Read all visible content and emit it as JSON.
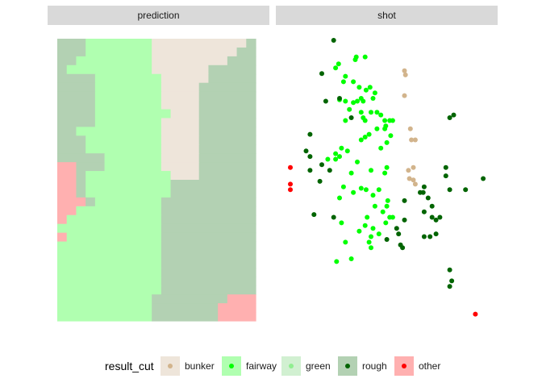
{
  "chart_data": [
    {
      "type": "heatmap",
      "panel": "prediction",
      "grid": {
        "cols": 21,
        "rows": 32
      },
      "colors": {
        "bunker": "#eee5da",
        "fairway": "#b0ffb0",
        "green": "#d1f0d1",
        "rough": "#b3d1b3",
        "other": "#ffb0b0"
      },
      "region_rows": [
        [
          3,
          13,
          3
        ],
        [
          3,
          13,
          3
        ],
        [
          3,
          13,
          3
        ],
        [
          3,
          13,
          3
        ],
        [
          3,
          13,
          3
        ],
        [
          3,
          13,
          3
        ],
        [
          3,
          13,
          3
        ],
        [
          3,
          13,
          3
        ],
        [
          3,
          13,
          3
        ],
        [
          3,
          13,
          3
        ],
        [
          3,
          13,
          3
        ],
        [
          3,
          13,
          3
        ],
        [
          3,
          13,
          3
        ],
        [
          3,
          13,
          3
        ],
        [
          3,
          13,
          3
        ],
        [
          3,
          13,
          3
        ],
        [
          3,
          13,
          3
        ],
        [
          3,
          13,
          3
        ],
        [
          3,
          13,
          3
        ],
        [
          3,
          13,
          3
        ],
        [
          3,
          13,
          3
        ],
        [
          3,
          13,
          3
        ],
        [
          3,
          13,
          3
        ],
        [
          3,
          13,
          3
        ],
        [
          3,
          13,
          3
        ],
        [
          3,
          13,
          3
        ],
        [
          3,
          13,
          3
        ],
        [
          3,
          13,
          3
        ],
        [
          3,
          13,
          3
        ],
        [
          3,
          13,
          3
        ],
        [
          3,
          13,
          3
        ],
        [
          3,
          13,
          3
        ]
      ],
      "runs": [
        [
          [
            "rough",
            3
          ],
          [
            "fairway",
            7
          ],
          [
            "bunker",
            10
          ],
          [
            "rough",
            1
          ]
        ],
        [
          [
            "rough",
            3
          ],
          [
            "fairway",
            7
          ],
          [
            "bunker",
            9
          ],
          [
            "rough",
            2
          ]
        ],
        [
          [
            "rough",
            2
          ],
          [
            "fairway",
            8
          ],
          [
            "bunker",
            8
          ],
          [
            "rough",
            3
          ]
        ],
        [
          [
            "rough",
            1
          ],
          [
            "fairway",
            9
          ],
          [
            "bunker",
            6
          ],
          [
            "rough",
            5
          ]
        ],
        [
          [
            "rough",
            4
          ],
          [
            "fairway",
            7
          ],
          [
            "bunker",
            5
          ],
          [
            "rough",
            5
          ]
        ],
        [
          [
            "rough",
            4
          ],
          [
            "fairway",
            7
          ],
          [
            "bunker",
            4
          ],
          [
            "rough",
            6
          ]
        ],
        [
          [
            "rough",
            4
          ],
          [
            "fairway",
            7
          ],
          [
            "bunker",
            4
          ],
          [
            "rough",
            6
          ]
        ],
        [
          [
            "rough",
            4
          ],
          [
            "fairway",
            7
          ],
          [
            "bunker",
            4
          ],
          [
            "rough",
            6
          ]
        ],
        [
          [
            "rough",
            4
          ],
          [
            "fairway",
            8
          ],
          [
            "bunker",
            3
          ],
          [
            "rough",
            6
          ]
        ],
        [
          [
            "rough",
            4
          ],
          [
            "fairway",
            7
          ],
          [
            "bunker",
            4
          ],
          [
            "rough",
            6
          ]
        ],
        [
          [
            "rough",
            2
          ],
          [
            "fairway",
            9
          ],
          [
            "bunker",
            4
          ],
          [
            "rough",
            6
          ]
        ],
        [
          [
            "rough",
            3
          ],
          [
            "fairway",
            8
          ],
          [
            "bunker",
            4
          ],
          [
            "rough",
            6
          ]
        ],
        [
          [
            "rough",
            3
          ],
          [
            "fairway",
            8
          ],
          [
            "bunker",
            4
          ],
          [
            "rough",
            6
          ]
        ],
        [
          [
            "rough",
            5
          ],
          [
            "fairway",
            6
          ],
          [
            "bunker",
            4
          ],
          [
            "rough",
            6
          ]
        ],
        [
          [
            "other",
            2
          ],
          [
            "rough",
            3
          ],
          [
            "fairway",
            6
          ],
          [
            "bunker",
            4
          ],
          [
            "rough",
            6
          ]
        ],
        [
          [
            "other",
            2
          ],
          [
            "rough",
            1
          ],
          [
            "fairway",
            9
          ],
          [
            "bunker",
            3
          ],
          [
            "rough",
            6
          ]
        ],
        [
          [
            "other",
            2
          ],
          [
            "rough",
            1
          ],
          [
            "fairway",
            9
          ],
          [
            "rough",
            9
          ]
        ],
        [
          [
            "other",
            2
          ],
          [
            "rough",
            1
          ],
          [
            "fairway",
            9
          ],
          [
            "rough",
            9
          ]
        ],
        [
          [
            "other",
            3
          ],
          [
            "rough",
            1
          ],
          [
            "fairway",
            7
          ],
          [
            "rough",
            10
          ]
        ],
        [
          [
            "other",
            2
          ],
          [
            "fairway",
            9
          ],
          [
            "rough",
            10
          ]
        ],
        [
          [
            "other",
            1
          ],
          [
            "fairway",
            10
          ],
          [
            "rough",
            10
          ]
        ],
        [
          [
            "fairway",
            11
          ],
          [
            "rough",
            10
          ]
        ],
        [
          [
            "other",
            1
          ],
          [
            "fairway",
            10
          ],
          [
            "rough",
            10
          ]
        ],
        [
          [
            "fairway",
            11
          ],
          [
            "rough",
            10
          ]
        ],
        [
          [
            "fairway",
            11
          ],
          [
            "rough",
            10
          ]
        ],
        [
          [
            "fairway",
            11
          ],
          [
            "rough",
            10
          ]
        ],
        [
          [
            "fairway",
            11
          ],
          [
            "rough",
            10
          ]
        ],
        [
          [
            "fairway",
            11
          ],
          [
            "rough",
            10
          ]
        ],
        [
          [
            "fairway",
            11
          ],
          [
            "rough",
            10
          ]
        ],
        [
          [
            "fairway",
            10
          ],
          [
            "rough",
            8
          ],
          [
            "other",
            3
          ]
        ],
        [
          [
            "fairway",
            10
          ],
          [
            "rough",
            7
          ],
          [
            "other",
            4
          ]
        ],
        [
          [
            "fairway",
            10
          ],
          [
            "rough",
            7
          ],
          [
            "other",
            4
          ]
        ]
      ]
    },
    {
      "type": "scatter",
      "panel": "shot",
      "xlim": [
        0,
        100
      ],
      "ylim": [
        0,
        100
      ],
      "colors": {
        "bunker": "#d2b48c",
        "fairway": "#00ff00",
        "green": "#90ee90",
        "rough": "#006400",
        "other": "#ff0000"
      },
      "series": [
        {
          "name": "bunker",
          "points": [
            [
              58,
              89
            ],
            [
              58.5,
              87.5
            ],
            [
              58,
              80
            ],
            [
              61,
              68
            ],
            [
              61.5,
              64
            ],
            [
              63.5,
              64
            ],
            [
              60,
              53
            ],
            [
              62.5,
              54
            ],
            [
              60.5,
              50
            ],
            [
              62.5,
              49.5
            ],
            [
              63.5,
              48
            ]
          ]
        },
        {
          "name": "fairway",
          "points": [
            [
              23,
              90
            ],
            [
              24.5,
              91.5
            ],
            [
              28,
              87
            ],
            [
              33,
              93
            ],
            [
              33.5,
              94
            ],
            [
              38,
              94
            ],
            [
              27,
              85
            ],
            [
              32,
              85
            ],
            [
              35,
              83
            ],
            [
              38.5,
              82
            ],
            [
              40.5,
              83
            ],
            [
              43,
              81
            ],
            [
              25,
              78.5
            ],
            [
              28,
              78
            ],
            [
              32,
              77.5
            ],
            [
              34,
              78
            ],
            [
              36,
              79
            ],
            [
              37,
              78
            ],
            [
              42,
              79
            ],
            [
              30,
              75
            ],
            [
              36,
              74
            ],
            [
              37,
              72
            ],
            [
              38,
              71
            ],
            [
              41,
              74
            ],
            [
              44,
              74
            ],
            [
              46,
              73
            ],
            [
              48,
              71
            ],
            [
              48.5,
              69
            ],
            [
              50.5,
              71
            ],
            [
              52,
              71
            ],
            [
              28,
              71
            ],
            [
              44,
              68
            ],
            [
              48,
              68
            ],
            [
              40,
              66
            ],
            [
              38,
              65
            ],
            [
              36,
              64
            ],
            [
              51,
              65.5
            ],
            [
              49,
              63
            ],
            [
              46,
              61
            ],
            [
              23,
              59
            ],
            [
              26,
              61
            ],
            [
              29,
              60
            ],
            [
              23,
              57
            ],
            [
              25,
              58
            ],
            [
              19,
              57
            ],
            [
              34,
              56
            ],
            [
              31,
              52
            ],
            [
              41,
              53
            ],
            [
              49,
              54
            ],
            [
              48,
              52
            ],
            [
              36,
              46.5
            ],
            [
              38.5,
              46
            ],
            [
              42,
              44
            ],
            [
              45,
              46
            ],
            [
              25,
              43
            ],
            [
              27,
              47
            ],
            [
              32,
              45
            ],
            [
              43,
              40
            ],
            [
              49,
              40
            ],
            [
              49.5,
              42
            ],
            [
              39,
              36
            ],
            [
              47,
              38
            ],
            [
              38,
              33
            ],
            [
              42,
              32
            ],
            [
              48.5,
              34
            ],
            [
              50.5,
              36
            ],
            [
              52,
              36
            ],
            [
              35,
              31
            ],
            [
              45,
              30
            ],
            [
              41,
              29
            ],
            [
              28,
              27
            ],
            [
              26,
              34
            ],
            [
              40,
              27
            ],
            [
              41,
              25
            ],
            [
              23.5,
              20
            ],
            [
              31,
              21
            ]
          ]
        },
        {
          "name": "rough",
          "points": [
            [
              22,
              100
            ],
            [
              16,
              88
            ],
            [
              18,
              78
            ],
            [
              25,
              79
            ],
            [
              31,
              72
            ],
            [
              10,
              66
            ],
            [
              8,
              60
            ],
            [
              10,
              58
            ],
            [
              16,
              55
            ],
            [
              20,
              53
            ],
            [
              10,
              53
            ],
            [
              15,
              49
            ],
            [
              81,
              72
            ],
            [
              83,
              73
            ],
            [
              58,
              42
            ],
            [
              66,
              45
            ],
            [
              68,
              47
            ],
            [
              67.5,
              45
            ],
            [
              70,
              43
            ],
            [
              72,
              40
            ],
            [
              68,
              38
            ],
            [
              72,
              36
            ],
            [
              74,
              35
            ],
            [
              76,
              36
            ],
            [
              74,
              30
            ],
            [
              71,
              29
            ],
            [
              68,
              29
            ],
            [
              54,
              32
            ],
            [
              55,
              30
            ],
            [
              58,
              35
            ],
            [
              49,
              28
            ],
            [
              56,
              26
            ],
            [
              57,
              25
            ],
            [
              79,
              54
            ],
            [
              79,
              51
            ],
            [
              81,
              46
            ],
            [
              89,
              46
            ],
            [
              98,
              50
            ],
            [
              81,
              17
            ],
            [
              82,
              13
            ],
            [
              81,
              11
            ],
            [
              12,
              37
            ],
            [
              22,
              36
            ]
          ]
        },
        {
          "name": "green",
          "points": []
        },
        {
          "name": "other",
          "points": [
            [
              0,
              54
            ],
            [
              0,
              48
            ],
            [
              0,
              46
            ],
            [
              94,
              1
            ]
          ]
        }
      ]
    }
  ],
  "panels": {
    "left_title": "prediction",
    "right_title": "shot"
  },
  "legend": {
    "title": "result_cut",
    "items": [
      {
        "label": "bunker",
        "fill": "#eee5da",
        "dot": "#d2b48c"
      },
      {
        "label": "fairway",
        "fill": "#b0ffb0",
        "dot": "#00ff00"
      },
      {
        "label": "green",
        "fill": "#d1f0d1",
        "dot": "#90ee90"
      },
      {
        "label": "rough",
        "fill": "#b3d1b3",
        "dot": "#006400"
      },
      {
        "label": "other",
        "fill": "#ffb0b0",
        "dot": "#ff0000"
      }
    ]
  }
}
